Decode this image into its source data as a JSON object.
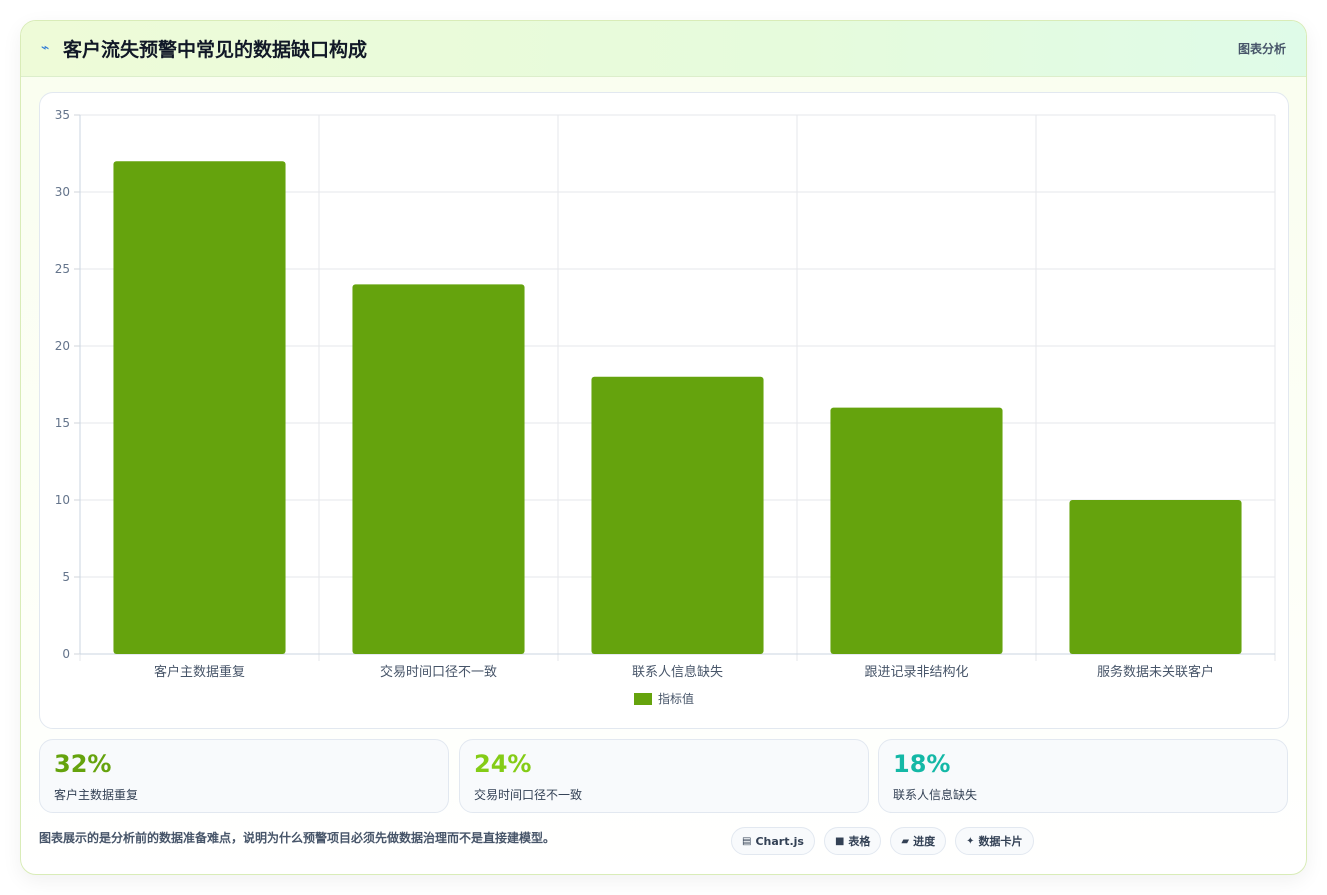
{
  "header": {
    "icon": "trend-icon",
    "title": "客户流失预警中常见的数据缺口构成",
    "tag": "图表分析"
  },
  "chart_data": {
    "type": "bar",
    "categories": [
      "客户主数据重复",
      "交易时间口径不一致",
      "联系人信息缺失",
      "跟进记录非结构化",
      "服务数据未关联客户"
    ],
    "series": [
      {
        "name": "指标值",
        "values": [
          32,
          24,
          18,
          16,
          10
        ]
      }
    ],
    "ylim": [
      0,
      35
    ],
    "yticks": [
      0,
      5,
      10,
      15,
      20,
      25,
      30,
      35
    ],
    "grid": true,
    "legend_position": "bottom",
    "bar_color": "#65a30d"
  },
  "stats": [
    {
      "value": "32%",
      "label": "客户主数据重复",
      "color": "#65a30d"
    },
    {
      "value": "24%",
      "label": "交易时间口径不一致",
      "color": "#84cc16"
    },
    {
      "value": "18%",
      "label": "联系人信息缺失",
      "color": "#14b8a6"
    }
  ],
  "footer": {
    "note": "图表展示的是分析前的数据准备难点，说明为什么预警项目必须先做数据治理而不是直接建模型。",
    "pills": [
      {
        "icon": "chart-icon",
        "glyph": "▤",
        "label": "Chart.js"
      },
      {
        "icon": "table-icon",
        "glyph": "■",
        "label": "表格"
      },
      {
        "icon": "progress-icon",
        "glyph": "▰",
        "label": "进度"
      },
      {
        "icon": "sparkle-icon",
        "glyph": "✦",
        "label": "数据卡片"
      }
    ]
  }
}
